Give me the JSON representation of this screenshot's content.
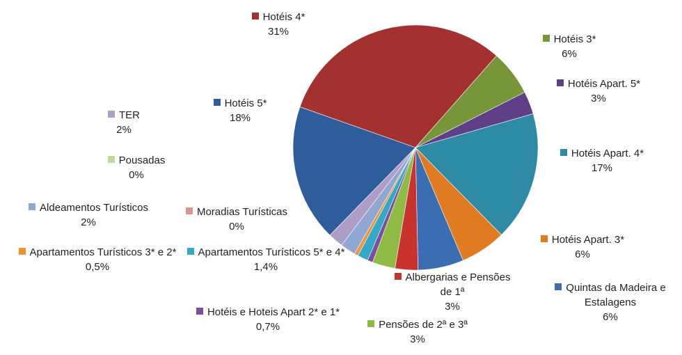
{
  "chart_data": {
    "type": "pie",
    "categories": [
      "Hotéis 4*",
      "Hotéis 3*",
      "Hotéis Apart. 5*",
      "Hotéis Apart. 4*",
      "Hotéis Apart. 3*",
      "Quintas da Madeira e Estalagens",
      "Albergarias e Pensões de 1ª",
      "Pensões de 2ª e 3ª",
      "Hotéis e Hoteis Apart 2* e 1*",
      "Apartamentos Turísticos 5* e 4*",
      "Apartamentos Turísticos 3* e 2*",
      "Moradias Turísticas",
      "Aldeamentos Turísticos",
      "Pousadas",
      "TER",
      "Hotéis 5*"
    ],
    "values": [
      31,
      6,
      3,
      17,
      6,
      6,
      3,
      3,
      0.7,
      1.4,
      0.5,
      0,
      2,
      0,
      2,
      18
    ],
    "value_labels": [
      "31%",
      "6%",
      "3%",
      "17%",
      "6%",
      "6%",
      "3%",
      "3%",
      "0,7%",
      "1,4%",
      "0,5%",
      "0%",
      "2%",
      "0%",
      "2%",
      "18%"
    ],
    "colors": [
      "#a33130",
      "#77963a",
      "#5f3f87",
      "#2e8ba5",
      "#e07b21",
      "#3b6db3",
      "#c8332f",
      "#8fba44",
      "#7c4ea0",
      "#35a8c6",
      "#f29233",
      "#d99594",
      "#8ea8d3",
      "#c2d89a",
      "#ae9dc6",
      "#2f5d9c"
    ]
  }
}
